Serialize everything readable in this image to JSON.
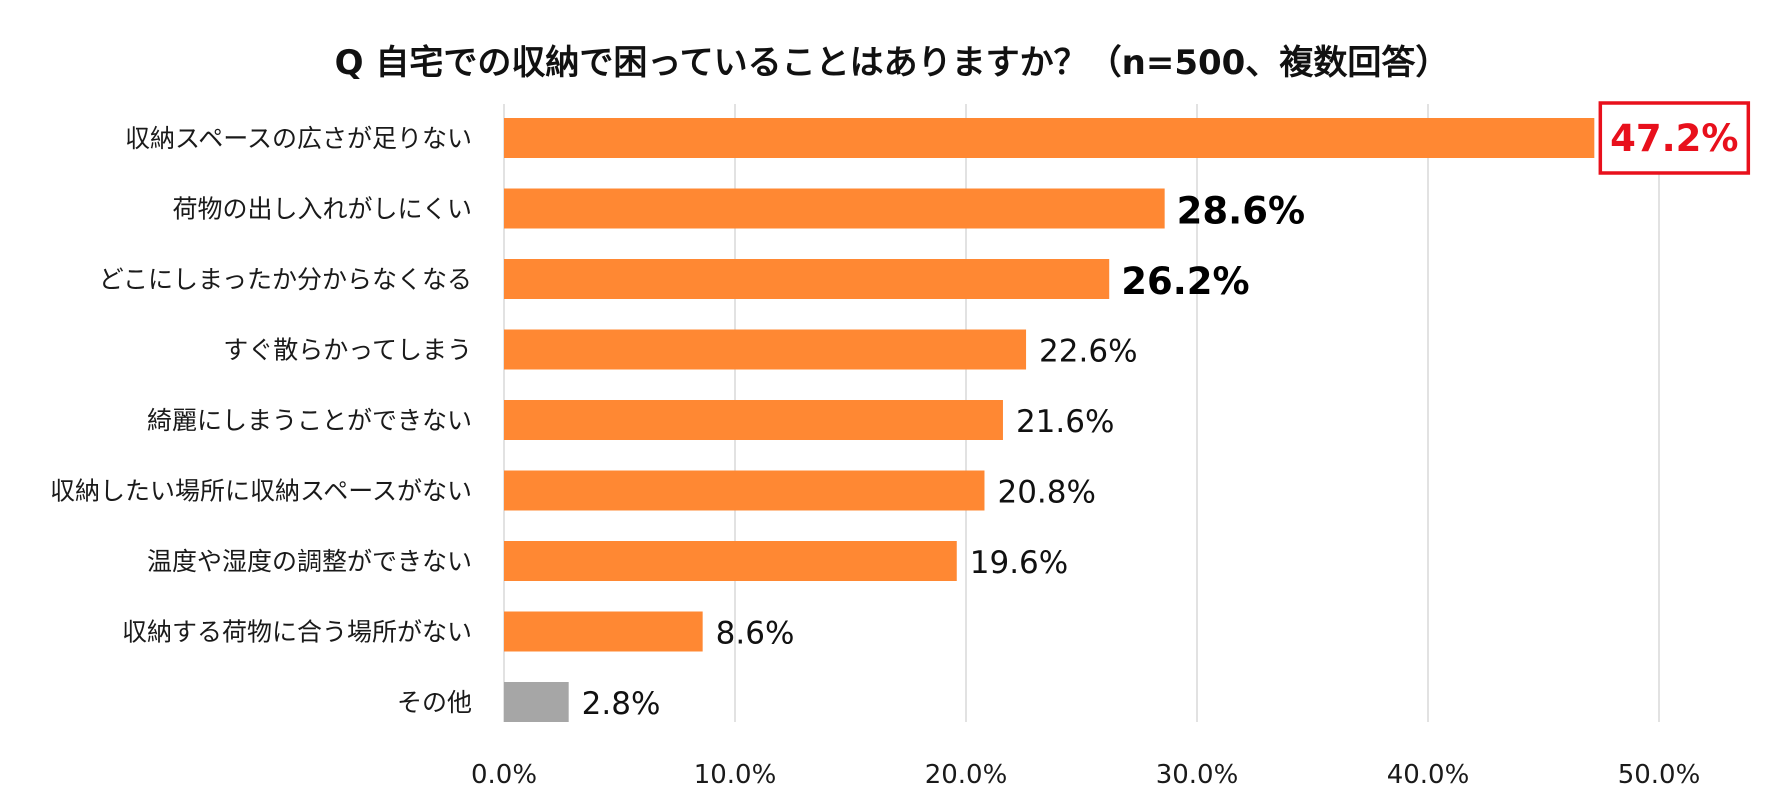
{
  "chart_data": {
    "type": "bar",
    "orientation": "horizontal",
    "title": "Q 自宅での収納で困っていることはありますか？（n=500、複数回答）",
    "categories": [
      "収納スペースの広さが足りない",
      "荷物の出し入れがしにくい",
      "どこにしまったか分からなくなる",
      "すぐ散らかってしまう",
      "綺麗にしまうことができない",
      "収納したい場所に収納スペースがない",
      "温度や湿度の調整ができない",
      "収納する荷物に合う場所がない",
      "その他"
    ],
    "values": [
      47.2,
      28.6,
      26.2,
      22.6,
      21.6,
      20.8,
      19.6,
      8.6,
      2.8
    ],
    "value_labels": [
      "47.2%",
      "28.6%",
      "26.2%",
      "22.6%",
      "21.6%",
      "20.8%",
      "19.6%",
      "8.6%",
      "2.8%"
    ],
    "label_styles": [
      "highlight",
      "bold",
      "bold",
      "normal",
      "normal",
      "normal",
      "normal",
      "normal",
      "normal"
    ],
    "bar_colors": [
      "#FF8833",
      "#FF8833",
      "#FF8833",
      "#FF8833",
      "#FF8833",
      "#FF8833",
      "#FF8833",
      "#FF8833",
      "#A6A6A6"
    ],
    "highlight_color": "#E8101C",
    "xlim": [
      0,
      50
    ],
    "xticks": [
      0,
      10,
      20,
      30,
      40,
      50
    ],
    "xtick_labels": [
      "0.0%",
      "10.0%",
      "20.0%",
      "30.0%",
      "40.0%",
      "50.0%"
    ],
    "xlabel": "",
    "ylabel": "",
    "grid": true,
    "grid_color": "#D9D9D9"
  }
}
